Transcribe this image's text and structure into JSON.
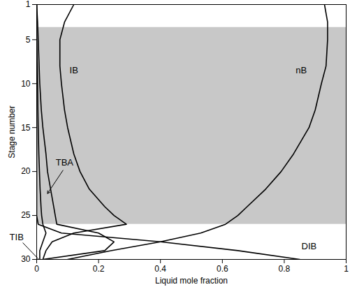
{
  "chart_data": {
    "type": "line",
    "xlabel": "Liquid mole fraction",
    "ylabel": "Stage number",
    "xlim": [
      0,
      1
    ],
    "ylim": [
      1,
      30
    ],
    "xticks": [
      0,
      0.2,
      0.4,
      0.6,
      0.8,
      1
    ],
    "yticks": [
      1,
      5,
      10,
      15,
      20,
      25,
      30
    ],
    "shaded_stages": [
      3.6,
      26
    ],
    "shade_color": "#c8c8c8",
    "series": [
      {
        "name": "nB",
        "color": "#000000",
        "y": [
          1,
          3,
          5,
          8,
          10,
          13,
          15,
          18,
          20,
          22,
          24,
          25,
          26,
          27,
          28,
          29,
          30
        ],
        "x": [
          0.93,
          0.94,
          0.94,
          0.935,
          0.92,
          0.9,
          0.88,
          0.83,
          0.79,
          0.74,
          0.68,
          0.65,
          0.61,
          0.53,
          0.4,
          0.24,
          0.1
        ]
      },
      {
        "name": "IB",
        "color": "#000000",
        "y": [
          1,
          3,
          5,
          8,
          10,
          13,
          15,
          18,
          20,
          22,
          24,
          25,
          26,
          27,
          28,
          29,
          30
        ],
        "x": [
          0.12,
          0.09,
          0.075,
          0.075,
          0.08,
          0.09,
          0.1,
          0.12,
          0.14,
          0.17,
          0.22,
          0.25,
          0.29,
          0.12,
          0.05,
          0.03,
          0.02
        ]
      },
      {
        "name": "TBA",
        "color": "#000000",
        "y": [
          1,
          3,
          5,
          8,
          10,
          13,
          15,
          18,
          20,
          22,
          24,
          25,
          26,
          27,
          28,
          29,
          30
        ],
        "x": [
          0,
          0.003,
          0.005,
          0.008,
          0.01,
          0.015,
          0.02,
          0.03,
          0.035,
          0.045,
          0.055,
          0.06,
          0.065,
          0.2,
          0.25,
          0.22,
          0.02
        ]
      },
      {
        "name": "TIB",
        "color": "#000000",
        "y": [
          1,
          3,
          5,
          8,
          10,
          13,
          15,
          18,
          20,
          22,
          24,
          25,
          26,
          27,
          28,
          29,
          30
        ],
        "x": [
          0,
          0,
          0,
          0.002,
          0.003,
          0.004,
          0.005,
          0.007,
          0.009,
          0.011,
          0.014,
          0.016,
          0.02,
          0.03,
          0.02,
          0.01,
          0.01
        ]
      },
      {
        "name": "DIB",
        "color": "#000000",
        "y": [
          1,
          3,
          5,
          8,
          10,
          13,
          15,
          18,
          20,
          22,
          24,
          25,
          26,
          27,
          28,
          29,
          30
        ],
        "x": [
          0,
          0,
          0,
          0,
          0,
          0,
          0,
          0,
          0,
          0,
          0,
          0,
          0.005,
          0.08,
          0.4,
          0.65,
          0.85
        ]
      }
    ],
    "annotations": [
      {
        "text": "IB",
        "x": 0.12,
        "y": 8.5
      },
      {
        "text": "nB",
        "x": 0.855,
        "y": 8.5
      },
      {
        "text": "TBA",
        "x": 0.09,
        "y": 19,
        "arrow_to": [
          0.035,
          22.5
        ]
      },
      {
        "text": "TIB",
        "x": -0.065,
        "y": 27.5,
        "line_to": [
          0.007,
          30
        ]
      },
      {
        "text": "DIB",
        "x": 0.88,
        "y": 28.5
      }
    ]
  }
}
